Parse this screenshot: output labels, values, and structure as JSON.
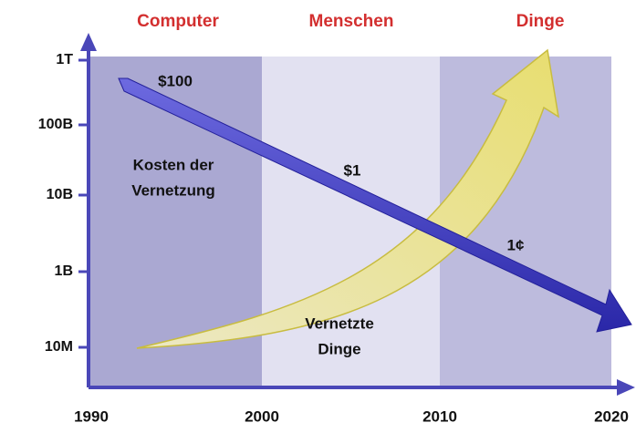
{
  "eras": [
    "Computer",
    "Menschen",
    "Dinge"
  ],
  "y_axis_labels": [
    "1T",
    "100B",
    "10B",
    "1B",
    "10M"
  ],
  "x_axis_labels": [
    "1990",
    "2000",
    "2010",
    "2020"
  ],
  "annotations": {
    "cost_1990": "$100",
    "cost_label": [
      "Kosten der",
      "Vernetzung"
    ],
    "cost_2005": "$1",
    "cost_2015": "1¢",
    "things_label": [
      "Vernetzte",
      "Dinge"
    ]
  }
}
